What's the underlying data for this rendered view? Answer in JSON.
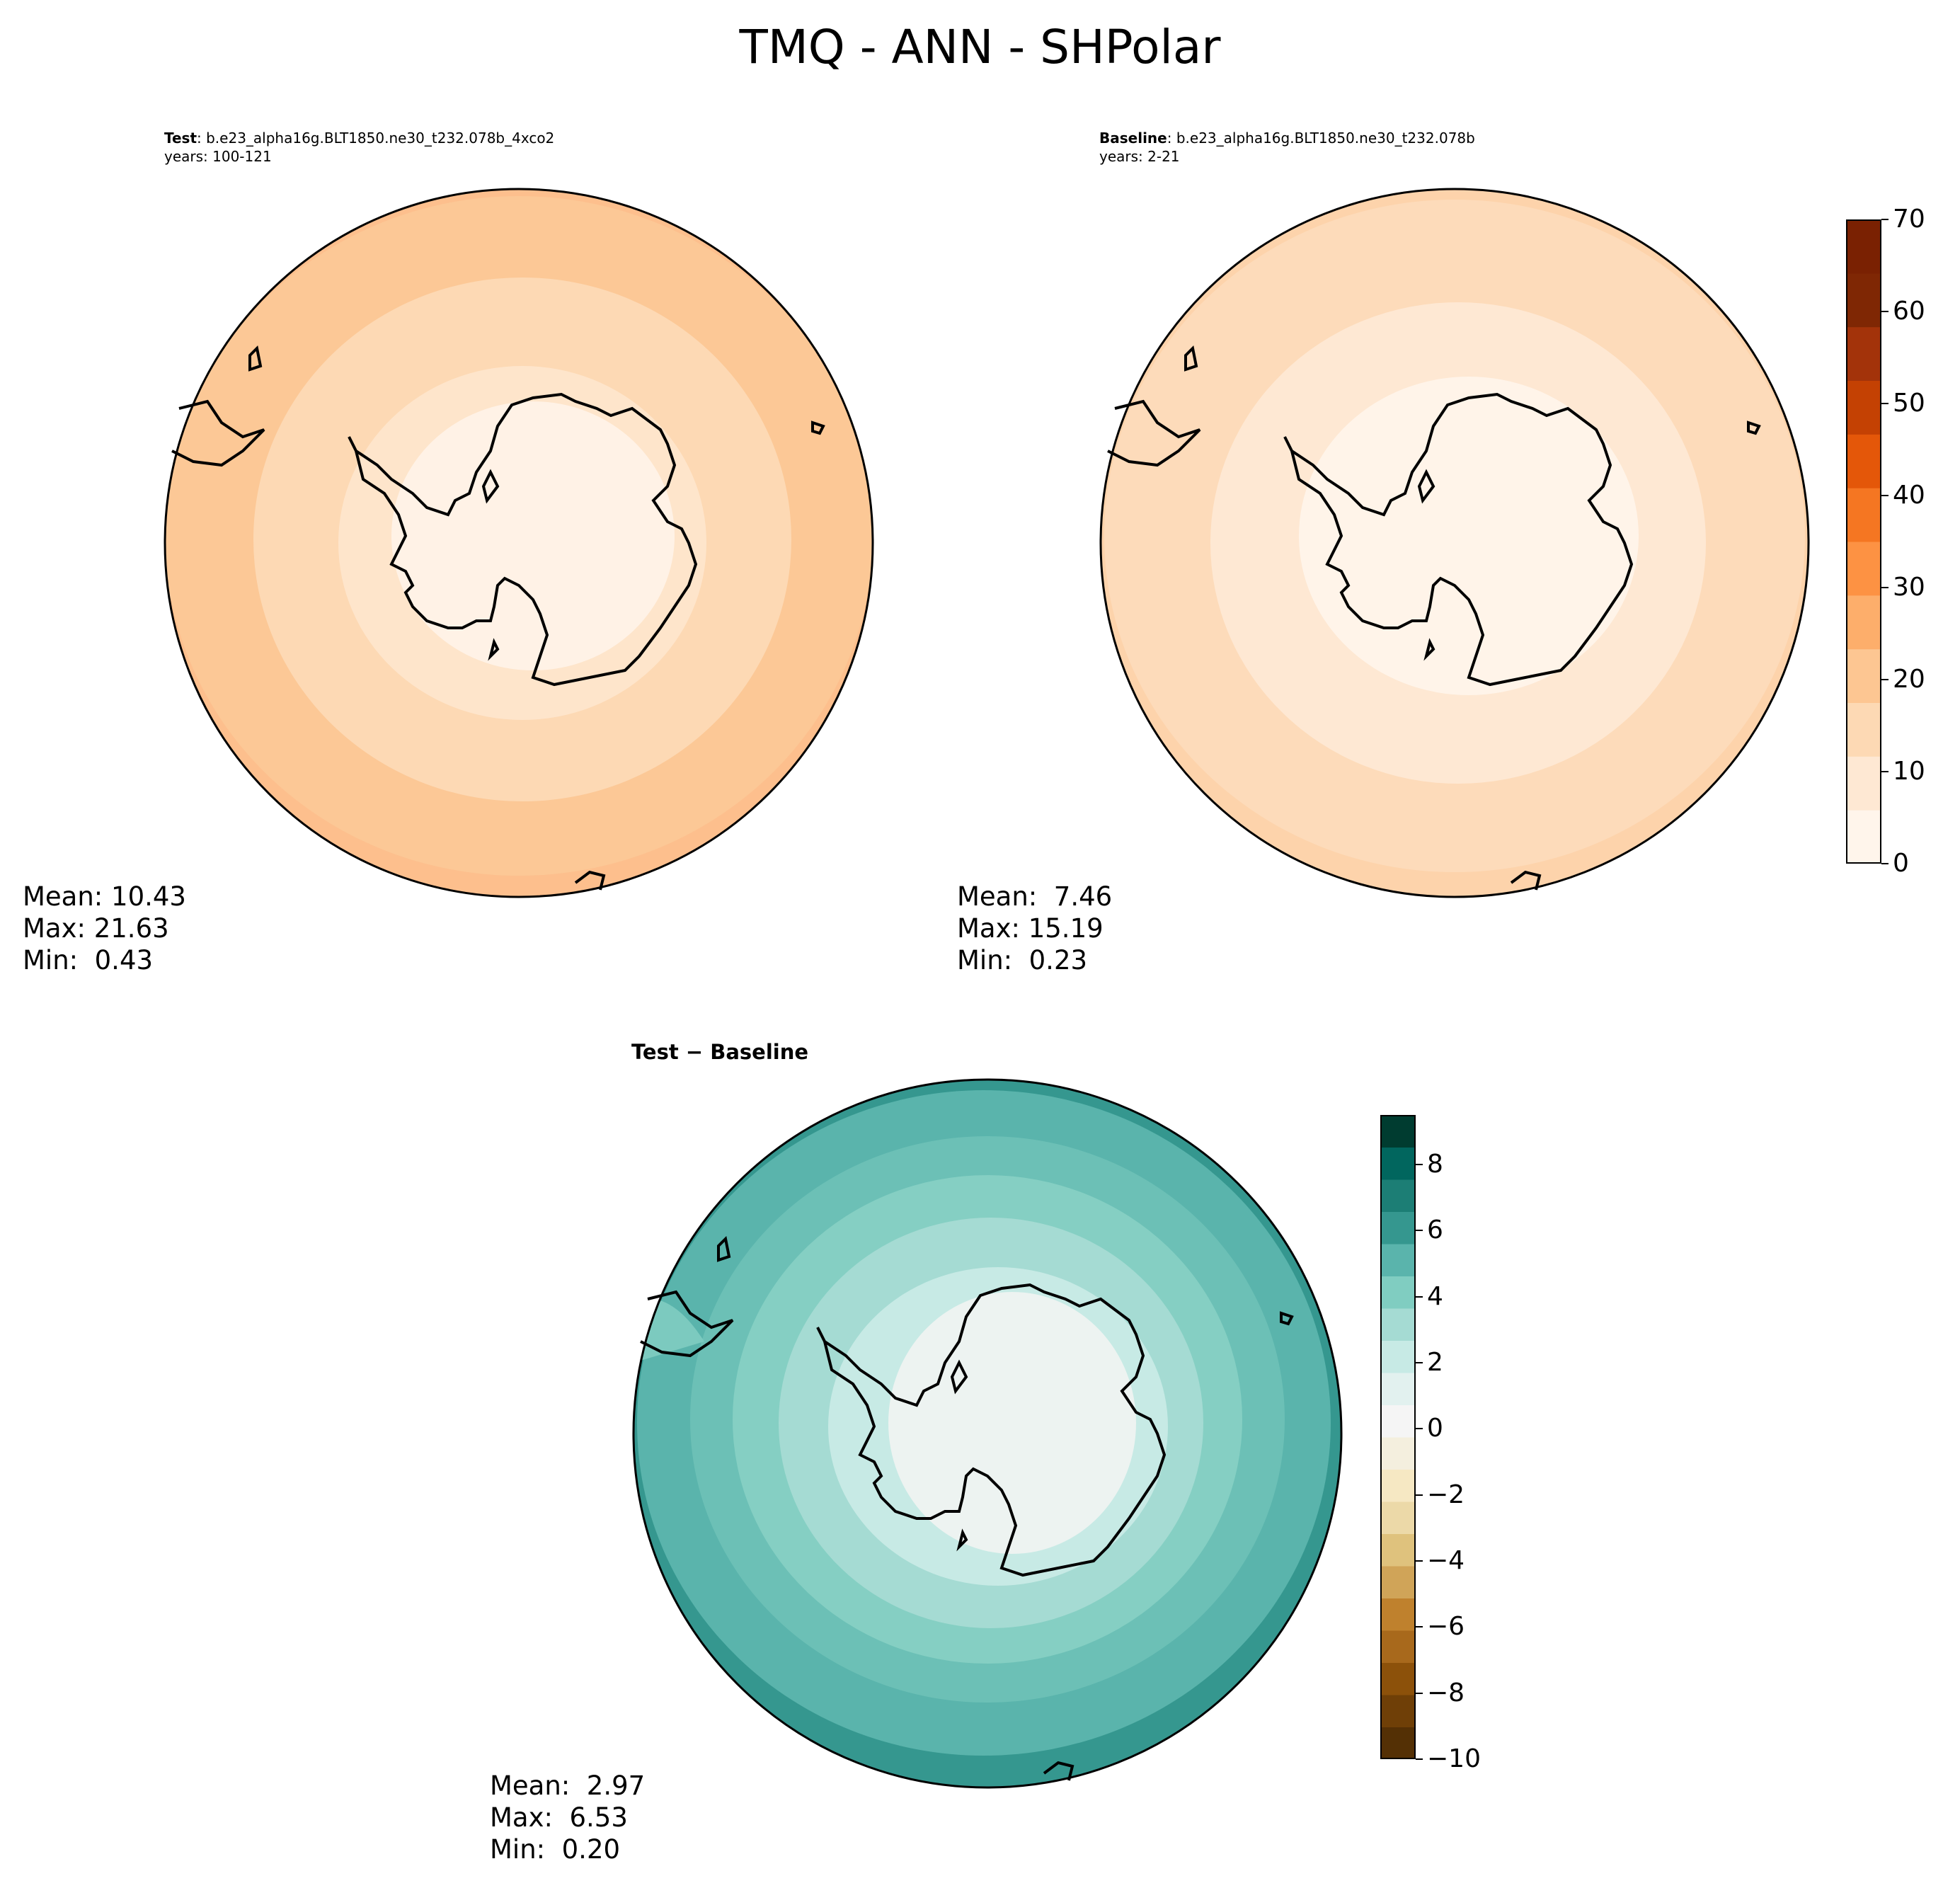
{
  "title": "TMQ - ANN - SHPolar",
  "panels": {
    "test": {
      "label": "Test",
      "case": ": b.e23_alpha16g.BLT1850.ne30_t232.078b_4xco2",
      "years": "years: 100-121",
      "mean": "Mean: 10.43",
      "max": "Max: 21.63",
      "min": "Min:  0.43"
    },
    "baseline": {
      "label": "Baseline",
      "case": ": b.e23_alpha16g.BLT1850.ne30_t232.078b",
      "years": "years: 2-21",
      "mean": "Mean:  7.46",
      "max": "Max: 15.19",
      "min": "Min:  0.23"
    },
    "diff": {
      "label": "Test − Baseline",
      "mean": "Mean:  2.97",
      "max": "Max:  6.53",
      "min": "Min:  0.20"
    }
  },
  "colorbar_main": {
    "range": [
      0,
      70
    ],
    "ticks": [
      "0",
      "10",
      "20",
      "30",
      "40",
      "50",
      "60",
      "70"
    ],
    "colors": [
      "#fff5eb",
      "#fee8d3",
      "#fdd9b4",
      "#fdc692",
      "#fdae6b",
      "#fd9243",
      "#f57622",
      "#e45709",
      "#c44103",
      "#a3330a",
      "#7f2704",
      "#7a2102"
    ]
  },
  "colorbar_diff": {
    "range": [
      -10,
      9.5
    ],
    "ticks": [
      "8",
      "6",
      "4",
      "2",
      "0",
      "−2",
      "−4",
      "−6",
      "−8",
      "−10"
    ],
    "colors_low_to_high": [
      "#543005",
      "#6f3f07",
      "#8c510a",
      "#a8691c",
      "#bf812d",
      "#d0a458",
      "#dfc27d",
      "#ecd9a8",
      "#f6e8c3",
      "#f4efde",
      "#f5f5f5",
      "#e2f1ef",
      "#c7eae5",
      "#a5dbd3",
      "#80cdc1",
      "#5ab4ac",
      "#35978f",
      "#1c7e75",
      "#01665e",
      "#003c30"
    ]
  }
}
